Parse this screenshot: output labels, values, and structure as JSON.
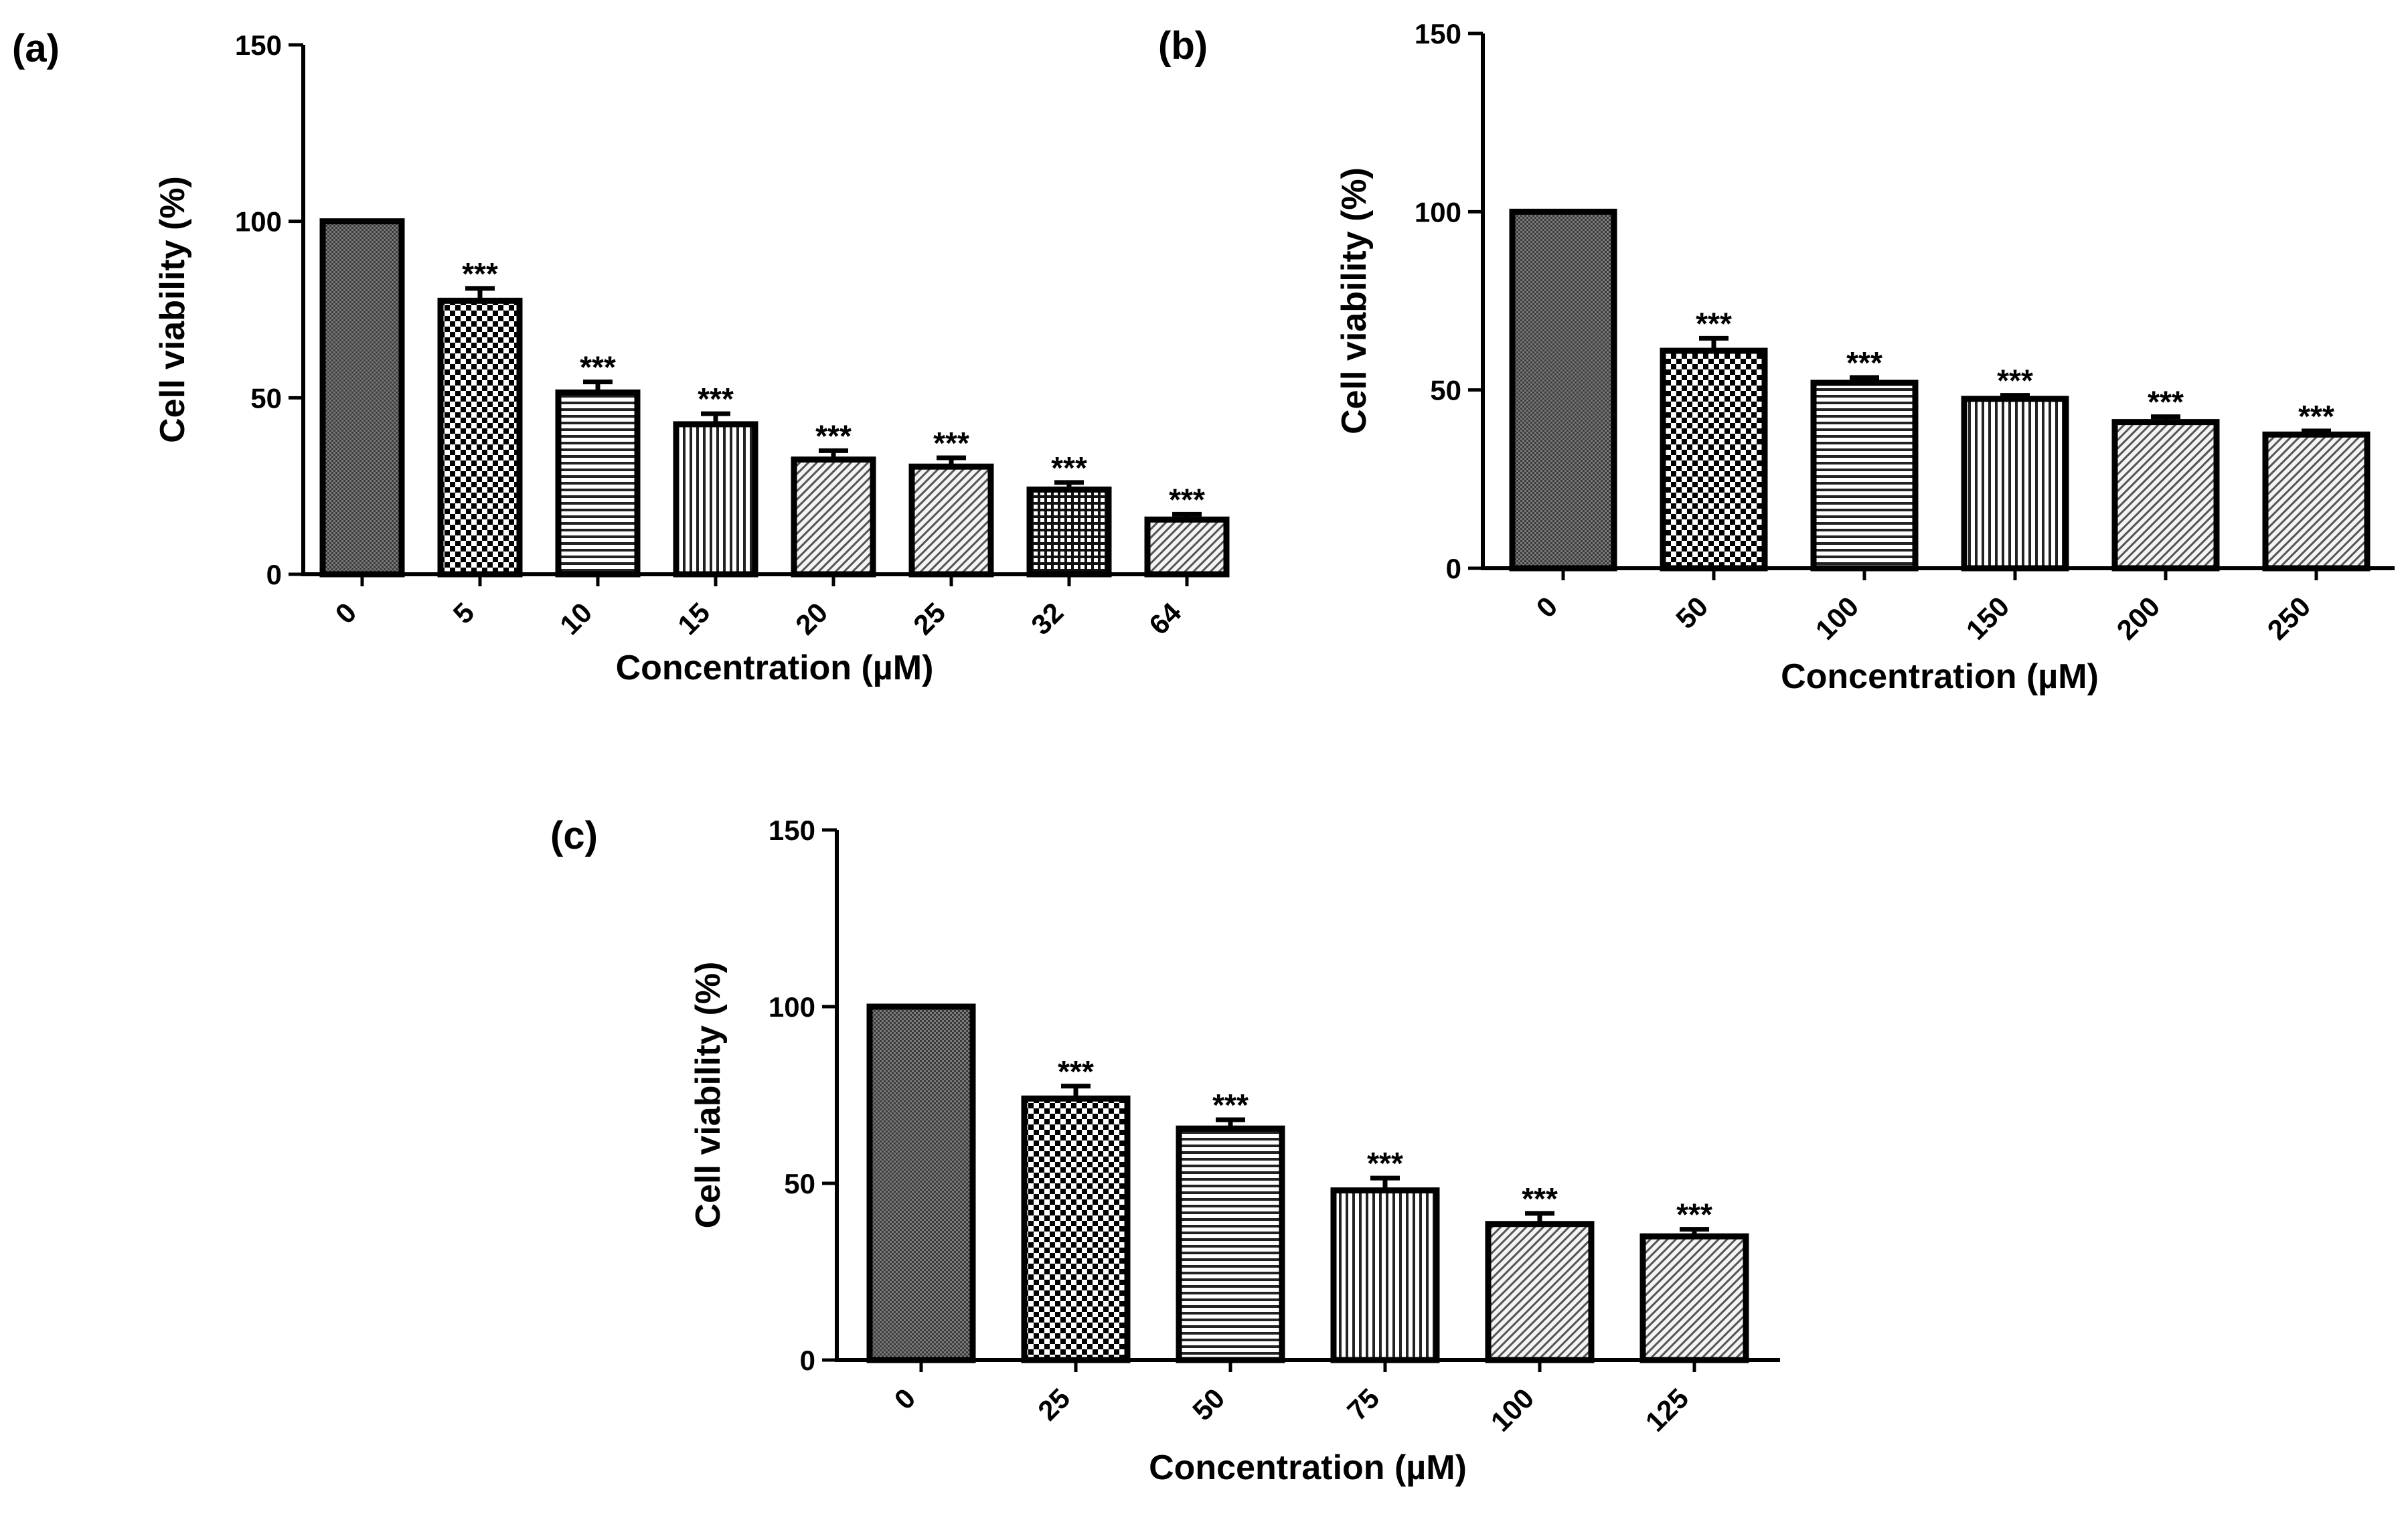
{
  "chart_data": [
    {
      "type": "bar",
      "panel_label": "(a)",
      "xlabel": "Concentration (µM)",
      "ylabel": "Cell viability (%)",
      "ylim": [
        0,
        150
      ],
      "yticks": [
        "0",
        "50",
        "100",
        "150"
      ],
      "categories": [
        "0",
        "5",
        "10",
        "15",
        "20",
        "25",
        "32",
        "64"
      ],
      "values": [
        100,
        77.5,
        51.5,
        42.5,
        32.5,
        30.5,
        24,
        15.5
      ],
      "errors": [
        0,
        3.5,
        3,
        3,
        2.5,
        2.5,
        2,
        1.5
      ],
      "annotations": [
        "",
        "***",
        "***",
        "***",
        "***",
        "***",
        "***",
        "***"
      ],
      "patterns": [
        "dense",
        "check",
        "hlines",
        "vlines",
        "diag",
        "diag",
        "grid",
        "diag"
      ]
    },
    {
      "type": "bar",
      "panel_label": "(b)",
      "xlabel": "Concentration (µM)",
      "ylabel": "Cell viability (%)",
      "ylim": [
        0,
        150
      ],
      "yticks": [
        "0",
        "50",
        "100",
        "150"
      ],
      "categories": [
        "0",
        "50",
        "100",
        "150",
        "200",
        "250"
      ],
      "values": [
        100,
        61,
        52,
        47.5,
        41,
        37.5
      ],
      "errors": [
        0,
        3.5,
        1.5,
        1,
        1.5,
        1
      ],
      "annotations": [
        "",
        "***",
        "***",
        "***",
        "***",
        "***"
      ],
      "patterns": [
        "dense",
        "check",
        "hlines",
        "vlines",
        "diag",
        "diag"
      ]
    },
    {
      "type": "bar",
      "panel_label": "(c)",
      "xlabel": "Concentration (µM)",
      "ylabel": "Cell viability (%)",
      "ylim": [
        0,
        150
      ],
      "yticks": [
        "0",
        "50",
        "100",
        "150"
      ],
      "categories": [
        "0",
        "25",
        "50",
        "75",
        "100",
        "125"
      ],
      "values": [
        100,
        74,
        65.5,
        48,
        38.5,
        35
      ],
      "errors": [
        0,
        3.5,
        2.5,
        3.5,
        3,
        2
      ],
      "annotations": [
        "",
        "***",
        "***",
        "***",
        "***",
        "***"
      ],
      "patterns": [
        "dense",
        "check",
        "hlines",
        "vlines",
        "diag",
        "diag"
      ]
    }
  ]
}
